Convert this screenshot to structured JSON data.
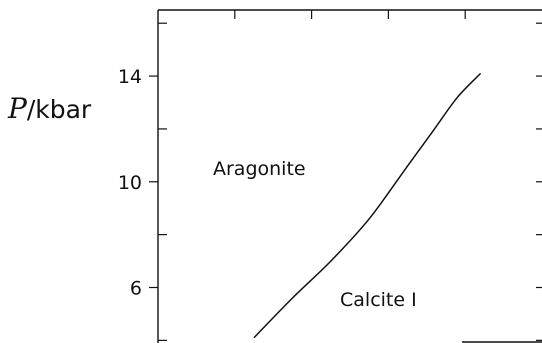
{
  "chart_data": {
    "type": "line",
    "ylabel": {
      "symbol": "P",
      "unit": "/kbar"
    },
    "xlabel": "",
    "title": "",
    "ylim": [
      3.9,
      16.5
    ],
    "xlim": [
      0,
      1
    ],
    "y_ticks_major": [
      6,
      10,
      14
    ],
    "y_ticks_minor": [
      4,
      8,
      12,
      16
    ],
    "y_tick_labels": [
      "14",
      "10",
      "6"
    ],
    "x_ticks": [
      0.2,
      0.4,
      0.6,
      0.8
    ],
    "grid": false,
    "annotations": [
      "Aragonite",
      "Calcite I"
    ],
    "series": [
      {
        "x": [
          0.25,
          0.35,
          0.45,
          0.55,
          0.65,
          0.72,
          0.78,
          0.84
        ],
        "y": [
          4.1,
          5.6,
          7.0,
          8.6,
          10.6,
          12.0,
          13.2,
          14.1
        ]
      }
    ]
  }
}
